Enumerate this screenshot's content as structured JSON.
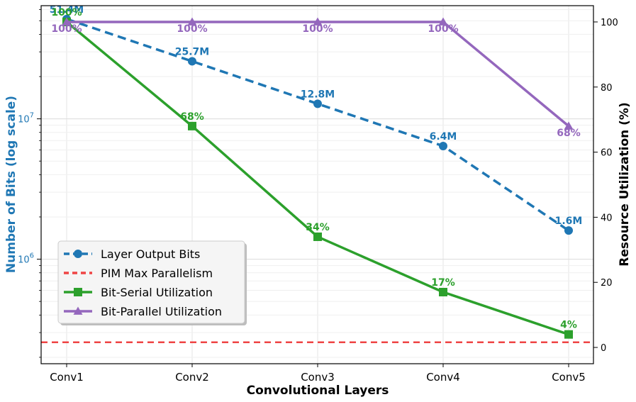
{
  "chart_data": {
    "type": "line",
    "xlabel": "Convolutional Layers",
    "ylabel_left": "Number of Bits (log scale)",
    "ylabel_right": "Resource Utilization (%)",
    "categories": [
      "Conv1",
      "Conv2",
      "Conv3",
      "Conv4",
      "Conv5"
    ],
    "left_axis": {
      "scale": "log",
      "range": [
        180000,
        64000000
      ],
      "ticks": [
        {
          "value": 1000000,
          "base": "10",
          "exp": "6"
        },
        {
          "value": 10000000,
          "base": "10",
          "exp": "7"
        }
      ]
    },
    "right_axis": {
      "scale": "linear",
      "range": [
        -5,
        105
      ],
      "ticks": [
        "0",
        "20",
        "40",
        "60",
        "80",
        "100"
      ]
    },
    "series": [
      {
        "name": "Layer Output Bits",
        "axis": "left",
        "color": "#1f77b4",
        "style": "dashed",
        "marker": "circle",
        "values": [
          51400000,
          25700000,
          12800000,
          6400000,
          1600000
        ],
        "labels": [
          "51.4M",
          "25.7M",
          "12.8M",
          "6.4M",
          "1.6M"
        ]
      },
      {
        "name": "PIM Max Parallelism",
        "axis": "left",
        "color": "#ef4444",
        "style": "dashed-hline",
        "value": 256000
      },
      {
        "name": "Bit-Serial Utilization",
        "axis": "right",
        "color": "#2ca02c",
        "style": "solid",
        "marker": "square",
        "values": [
          100,
          68,
          34,
          17,
          4
        ],
        "labels": [
          "100%",
          "68%",
          "34%",
          "17%",
          "4%"
        ]
      },
      {
        "name": "Bit-Parallel Utilization",
        "axis": "right",
        "color": "#9467bd",
        "style": "solid",
        "marker": "triangle",
        "values": [
          100,
          100,
          100,
          100,
          68
        ],
        "labels": [
          "100%",
          "100%",
          "100%",
          "100%",
          "68%"
        ]
      }
    ],
    "legend": {
      "placement": "lower-left",
      "entries": [
        "Layer Output Bits",
        "PIM Max Parallelism",
        "Bit-Serial Utilization",
        "Bit-Parallel Utilization"
      ]
    }
  }
}
